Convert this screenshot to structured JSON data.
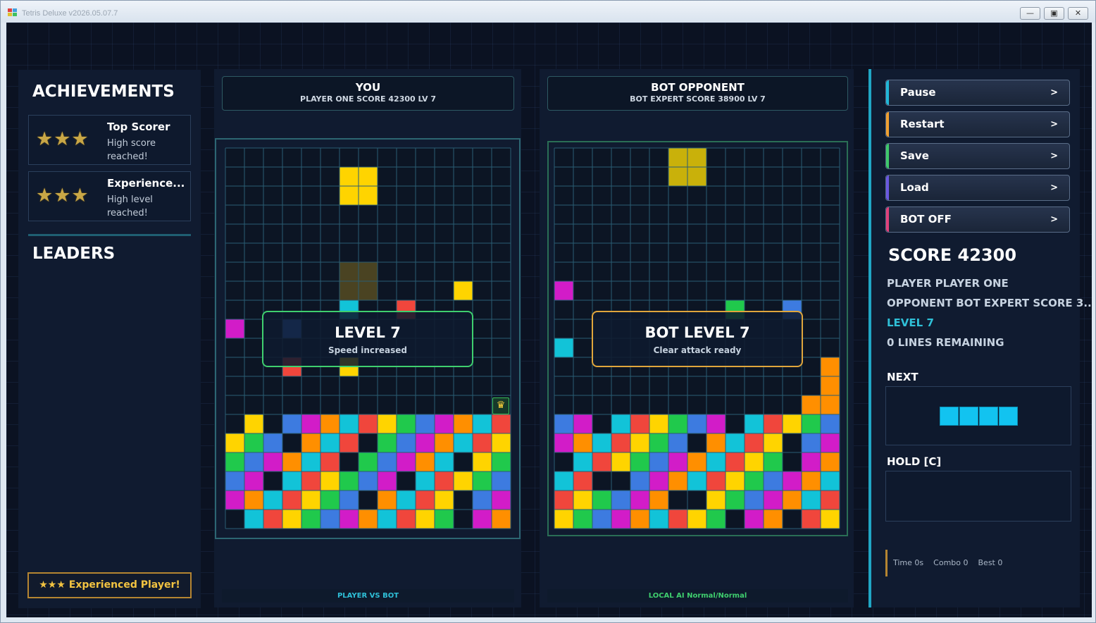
{
  "window": {
    "title": "Tetris Deluxe v2026.05.07.7",
    "minimize_glyph": "—",
    "restore_glyph": "▣",
    "close_glyph": "✕"
  },
  "left_panel": {
    "achievements_title": "ACHIEVEMENTS",
    "achievements": [
      {
        "stars": "★★★",
        "title": "Top Scorer",
        "desc": "High score reached!"
      },
      {
        "stars": "★★★",
        "title": "Experience...",
        "desc": "High level reached!"
      }
    ],
    "leaders_title": "LEADERS",
    "badge": "★★★ Experienced Player!"
  },
  "player_board": {
    "title": "YOU",
    "subtitle": "PLAYER ONE  SCORE 42300  LV 7",
    "overlay_title": "LEVEL 7",
    "overlay_subtitle": "Speed increased",
    "overlay_color": "#3fcf6e",
    "footer": "PLAYER VS BOT",
    "footer_color": "#2fc0d8",
    "bonus_icon": "bonus-icon",
    "falling_piece": {
      "shape": "O",
      "color": "#ffd400",
      "col": 6,
      "row": 1
    },
    "ghost_piece": {
      "shape": "O",
      "color": "#4a4322",
      "col": 6,
      "row": 6
    },
    "stack": [
      "...............",
      "...............",
      "...............",
      "...............",
      "...............",
      "...............",
      "...............",
      "...............",
      "...............",
      "...............",
      "...............",
      "...............",
      "...............",
      "...............",
      "...............",
      "...............",
      "...............",
      "...............",
      "...............",
      "...............",
      "...............",
      "...............",
      "...............",
      "...............",
      "...............",
      "...............",
      "...............",
      "...............",
      "...............",
      "..............."
    ],
    "cells": [
      [
        7,
        0,
        "Y"
      ],
      [
        12,
        0,
        "Y"
      ],
      [
        6,
        1,
        "C"
      ],
      [
        9,
        1,
        "R"
      ],
      [
        0,
        2,
        "M"
      ],
      [
        3,
        2,
        "B"
      ],
      [
        3,
        4,
        "R"
      ],
      [
        6,
        4,
        "Y"
      ],
      [
        1,
        7,
        "Y"
      ],
      [
        3,
        7,
        "B"
      ],
      [
        4,
        7,
        "M"
      ],
      [
        5,
        7,
        "O"
      ],
      [
        6,
        7,
        "C"
      ],
      [
        7,
        7,
        "R"
      ],
      [
        8,
        7,
        "Y"
      ],
      [
        9,
        7,
        "G"
      ],
      [
        10,
        7,
        "B"
      ],
      [
        11,
        7,
        "M"
      ],
      [
        12,
        7,
        "O"
      ],
      [
        13,
        7,
        "C"
      ],
      [
        14,
        7,
        "R"
      ],
      [
        0,
        8,
        "Y"
      ],
      [
        1,
        8,
        "G"
      ],
      [
        2,
        8,
        "B"
      ],
      [
        4,
        8,
        "O"
      ],
      [
        5,
        8,
        "C"
      ],
      [
        6,
        8,
        "R"
      ],
      [
        8,
        8,
        "G"
      ],
      [
        9,
        8,
        "B"
      ],
      [
        10,
        8,
        "M"
      ],
      [
        11,
        8,
        "O"
      ],
      [
        12,
        8,
        "C"
      ],
      [
        13,
        8,
        "R"
      ],
      [
        14,
        8,
        "Y"
      ],
      [
        0,
        9,
        "G"
      ],
      [
        1,
        9,
        "B"
      ],
      [
        2,
        9,
        "M"
      ],
      [
        3,
        9,
        "O"
      ],
      [
        4,
        9,
        "C"
      ],
      [
        5,
        9,
        "R"
      ],
      [
        7,
        9,
        "G"
      ],
      [
        8,
        9,
        "B"
      ],
      [
        9,
        9,
        "M"
      ],
      [
        10,
        9,
        "O"
      ],
      [
        11,
        9,
        "C"
      ],
      [
        13,
        9,
        "Y"
      ],
      [
        14,
        9,
        "G"
      ],
      [
        0,
        10,
        "B"
      ],
      [
        1,
        10,
        "M"
      ],
      [
        3,
        10,
        "C"
      ],
      [
        4,
        10,
        "R"
      ],
      [
        5,
        10,
        "Y"
      ],
      [
        6,
        10,
        "G"
      ],
      [
        7,
        10,
        "B"
      ],
      [
        8,
        10,
        "M"
      ],
      [
        10,
        10,
        "C"
      ],
      [
        11,
        10,
        "R"
      ],
      [
        12,
        10,
        "Y"
      ],
      [
        13,
        10,
        "G"
      ],
      [
        14,
        10,
        "B"
      ],
      [
        0,
        11,
        "M"
      ],
      [
        1,
        11,
        "O"
      ],
      [
        2,
        11,
        "C"
      ],
      [
        3,
        11,
        "R"
      ],
      [
        4,
        11,
        "Y"
      ],
      [
        5,
        11,
        "G"
      ],
      [
        6,
        11,
        "B"
      ],
      [
        8,
        11,
        "O"
      ],
      [
        9,
        11,
        "C"
      ],
      [
        10,
        11,
        "R"
      ],
      [
        11,
        11,
        "Y"
      ],
      [
        13,
        11,
        "B"
      ],
      [
        14,
        11,
        "M"
      ],
      [
        1,
        12,
        "C"
      ],
      [
        2,
        12,
        "R"
      ],
      [
        3,
        12,
        "Y"
      ],
      [
        4,
        12,
        "G"
      ],
      [
        5,
        12,
        "B"
      ],
      [
        6,
        12,
        "M"
      ],
      [
        7,
        12,
        "O"
      ],
      [
        8,
        12,
        "C"
      ],
      [
        9,
        12,
        "R"
      ],
      [
        10,
        12,
        "Y"
      ],
      [
        11,
        12,
        "G"
      ],
      [
        13,
        12,
        "M"
      ],
      [
        14,
        12,
        "O"
      ]
    ]
  },
  "bot_board": {
    "title": "BOT OPPONENT",
    "subtitle": "BOT EXPERT  SCORE 38900  LV 7",
    "overlay_title": "BOT LEVEL 7",
    "overlay_subtitle": "Clear attack ready",
    "overlay_color": "#e0a63c",
    "footer": "LOCAL AI Normal/Normal",
    "footer_color": "#3fcf6e",
    "falling_piece": {
      "shape": "O",
      "color": "#c9b10a",
      "col": 6,
      "row": 0
    },
    "cells": [
      [
        0,
        0,
        "M"
      ],
      [
        9,
        1,
        "G"
      ],
      [
        12,
        1,
        "B"
      ],
      [
        0,
        3,
        "C"
      ],
      [
        14,
        4,
        "O"
      ],
      [
        14,
        5,
        "O"
      ],
      [
        13,
        6,
        "O"
      ],
      [
        14,
        6,
        "O"
      ],
      [
        0,
        7,
        "B"
      ],
      [
        1,
        7,
        "M"
      ],
      [
        3,
        7,
        "C"
      ],
      [
        4,
        7,
        "R"
      ],
      [
        5,
        7,
        "Y"
      ],
      [
        6,
        7,
        "G"
      ],
      [
        7,
        7,
        "B"
      ],
      [
        8,
        7,
        "M"
      ],
      [
        10,
        7,
        "C"
      ],
      [
        11,
        7,
        "R"
      ],
      [
        12,
        7,
        "Y"
      ],
      [
        13,
        7,
        "G"
      ],
      [
        14,
        7,
        "B"
      ],
      [
        0,
        8,
        "M"
      ],
      [
        1,
        8,
        "O"
      ],
      [
        2,
        8,
        "C"
      ],
      [
        3,
        8,
        "R"
      ],
      [
        4,
        8,
        "Y"
      ],
      [
        5,
        8,
        "G"
      ],
      [
        6,
        8,
        "B"
      ],
      [
        8,
        8,
        "O"
      ],
      [
        9,
        8,
        "C"
      ],
      [
        10,
        8,
        "R"
      ],
      [
        11,
        8,
        "Y"
      ],
      [
        13,
        8,
        "B"
      ],
      [
        14,
        8,
        "M"
      ],
      [
        1,
        9,
        "C"
      ],
      [
        2,
        9,
        "R"
      ],
      [
        3,
        9,
        "Y"
      ],
      [
        4,
        9,
        "G"
      ],
      [
        5,
        9,
        "B"
      ],
      [
        6,
        9,
        "M"
      ],
      [
        7,
        9,
        "O"
      ],
      [
        8,
        9,
        "C"
      ],
      [
        9,
        9,
        "R"
      ],
      [
        10,
        9,
        "Y"
      ],
      [
        11,
        9,
        "G"
      ],
      [
        13,
        9,
        "M"
      ],
      [
        14,
        9,
        "O"
      ],
      [
        0,
        10,
        "C"
      ],
      [
        1,
        10,
        "R"
      ],
      [
        4,
        10,
        "B"
      ],
      [
        5,
        10,
        "M"
      ],
      [
        6,
        10,
        "O"
      ],
      [
        7,
        10,
        "C"
      ],
      [
        8,
        10,
        "R"
      ],
      [
        9,
        10,
        "Y"
      ],
      [
        10,
        10,
        "G"
      ],
      [
        11,
        10,
        "B"
      ],
      [
        12,
        10,
        "M"
      ],
      [
        13,
        10,
        "O"
      ],
      [
        14,
        10,
        "C"
      ],
      [
        0,
        11,
        "R"
      ],
      [
        1,
        11,
        "Y"
      ],
      [
        2,
        11,
        "G"
      ],
      [
        3,
        11,
        "B"
      ],
      [
        4,
        11,
        "M"
      ],
      [
        5,
        11,
        "O"
      ],
      [
        8,
        11,
        "Y"
      ],
      [
        9,
        11,
        "G"
      ],
      [
        10,
        11,
        "B"
      ],
      [
        11,
        11,
        "M"
      ],
      [
        12,
        11,
        "O"
      ],
      [
        13,
        11,
        "C"
      ],
      [
        14,
        11,
        "R"
      ],
      [
        0,
        12,
        "Y"
      ],
      [
        1,
        12,
        "G"
      ],
      [
        2,
        12,
        "B"
      ],
      [
        3,
        12,
        "M"
      ],
      [
        4,
        12,
        "O"
      ],
      [
        5,
        12,
        "C"
      ],
      [
        6,
        12,
        "R"
      ],
      [
        7,
        12,
        "Y"
      ],
      [
        8,
        12,
        "G"
      ],
      [
        10,
        12,
        "M"
      ],
      [
        11,
        12,
        "O"
      ],
      [
        13,
        12,
        "R"
      ],
      [
        14,
        12,
        "Y"
      ]
    ]
  },
  "piece_colors": {
    "Y": "#ffd400",
    "G": "#20c94c",
    "B": "#3d7be0",
    "M": "#d21cc8",
    "O": "#ff8f00",
    "C": "#12c3d8",
    "R": "#f0463c"
  },
  "right_panel": {
    "buttons": [
      {
        "label": "Pause",
        "accent": "#20b8d8"
      },
      {
        "label": "Restart",
        "accent": "#f0a030"
      },
      {
        "label": "Save",
        "accent": "#3ec86a"
      },
      {
        "label": "Load",
        "accent": "#6a58e0"
      },
      {
        "label": "BOT OFF",
        "accent": "#e0407a"
      }
    ],
    "button_arrow": ">",
    "score": "SCORE 42300",
    "player_line": "PLAYER PLAYER ONE",
    "opponent_line": "OPPONENT BOT EXPERT  SCORE 3...",
    "level_line": "LEVEL 7",
    "lines_remaining": "0 LINES REMAINING",
    "progress": 1.0,
    "next_label": "NEXT",
    "next_piece": {
      "shape": "I",
      "color": "#12c3f0"
    },
    "hold_label": "HOLD [C]",
    "stats": {
      "time": "Time 0s",
      "combo": "Combo 0",
      "best": "Best 0"
    }
  }
}
